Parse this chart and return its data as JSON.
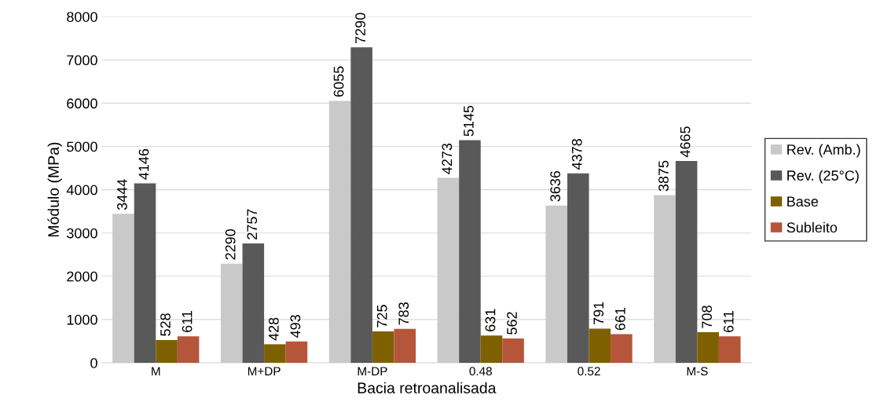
{
  "chart_data": {
    "type": "bar",
    "xlabel": "Bacia retroanalisada",
    "ylabel": "Módulo (MPa)",
    "categories": [
      "M",
      "M+DP",
      "M-DP",
      "0.48",
      "0.52",
      "M-S"
    ],
    "series": [
      {
        "name": "Rev. (Amb.)",
        "color": "#c9c9c9",
        "values": [
          3444,
          2290,
          6055,
          4273,
          3636,
          3875
        ]
      },
      {
        "name": "Rev. (25°C)",
        "color": "#595959",
        "values": [
          4146,
          2757,
          7290,
          5145,
          4378,
          4665
        ]
      },
      {
        "name": "Base",
        "color": "#7f6000",
        "values": [
          528,
          428,
          725,
          631,
          791,
          708
        ]
      },
      {
        "name": "Subleito",
        "color": "#b5553a",
        "values": [
          611,
          493,
          783,
          562,
          661,
          611
        ]
      }
    ],
    "ylim": [
      0,
      8000
    ],
    "yticks": [
      0,
      1000,
      2000,
      3000,
      4000,
      5000,
      6000,
      7000,
      8000
    ],
    "grid": "y",
    "legend": "right",
    "data_labels": true
  }
}
